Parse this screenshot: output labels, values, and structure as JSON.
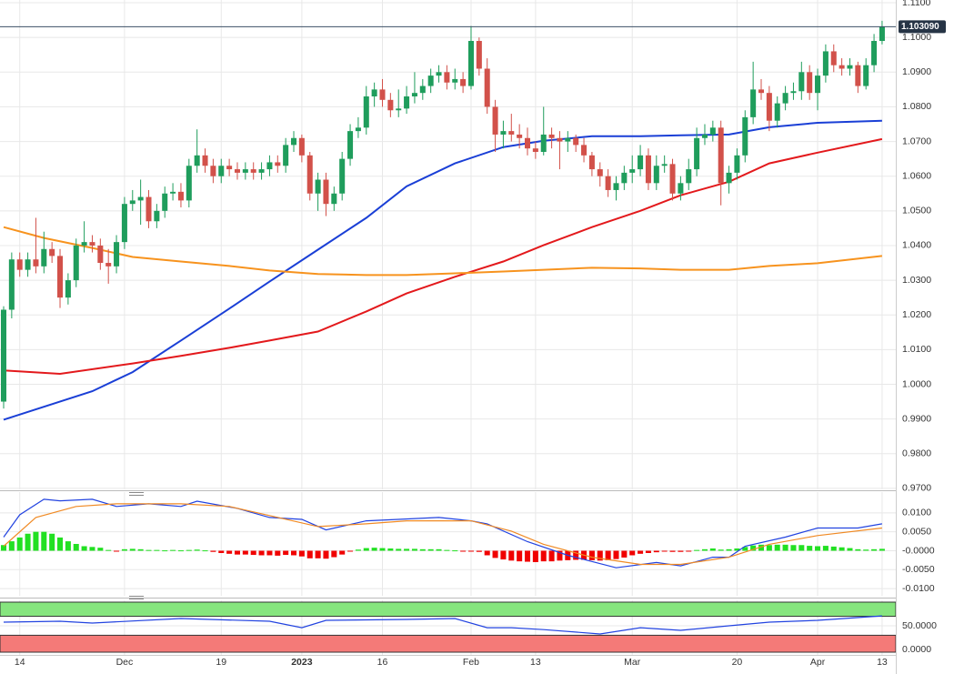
{
  "chart_data": [
    {
      "type": "candlestick",
      "xlim": [
        -0.45,
        110.7
      ],
      "ylim": [
        0.9697,
        1.1108
      ],
      "grid": true,
      "up_color": "#1f9d5c",
      "down_color": "#d2514a",
      "yticks": [
        {
          "value": 1.11,
          "label": "1.1100"
        },
        {
          "value": 1.1,
          "label": "1.1000"
        },
        {
          "value": 1.09,
          "label": "1.0900"
        },
        {
          "value": 1.08,
          "label": "1.0800"
        },
        {
          "value": 1.07,
          "label": "1.0700"
        },
        {
          "value": 1.06,
          "label": "1.0600"
        },
        {
          "value": 1.05,
          "label": "1.0500"
        },
        {
          "value": 1.04,
          "label": "1.0400"
        },
        {
          "value": 1.03,
          "label": "1.0300"
        },
        {
          "value": 1.02,
          "label": "1.0200"
        },
        {
          "value": 1.01,
          "label": "1.0100"
        },
        {
          "value": 1.0,
          "label": "1.0000"
        },
        {
          "value": 0.99,
          "label": "0.9900"
        },
        {
          "value": 0.98,
          "label": "0.9800"
        },
        {
          "value": 0.97,
          "label": "0.9700"
        }
      ],
      "xticks": [
        {
          "value": 2,
          "label": "14"
        },
        {
          "value": 15,
          "label": "Dec"
        },
        {
          "value": 27,
          "label": "19"
        },
        {
          "value": 37,
          "label": "2023"
        },
        {
          "value": 47,
          "label": "16"
        },
        {
          "value": 58,
          "label": "Feb"
        },
        {
          "value": 66,
          "label": "13"
        },
        {
          "value": 78,
          "label": "Mar"
        },
        {
          "value": 91,
          "label": "20"
        },
        {
          "value": 101,
          "label": "Apr"
        },
        {
          "value": 109,
          "label": "13"
        }
      ],
      "last_price": {
        "value": 1.10309,
        "label": "1.103090"
      },
      "open": [
        0.995,
        1.0215,
        1.036,
        1.033,
        1.036,
        1.034,
        1.039,
        1.037,
        1.025,
        1.03,
        1.04,
        1.041,
        1.04,
        1.035,
        1.034,
        1.041,
        1.052,
        1.053,
        1.054,
        1.047,
        1.05,
        1.055,
        1.0555,
        1.053,
        1.063,
        1.066,
        1.063,
        1.06,
        1.063,
        1.062,
        1.061,
        1.062,
        1.061,
        1.062,
        1.064,
        1.063,
        1.069,
        1.071,
        1.066,
        1.055,
        1.059,
        1.052,
        1.055,
        1.065,
        1.073,
        1.074,
        1.083,
        1.085,
        1.082,
        1.079,
        1.0795,
        1.083,
        1.084,
        1.086,
        1.089,
        1.09,
        1.087,
        1.088,
        1.086,
        1.099,
        1.091,
        1.08,
        1.072,
        1.073,
        1.072,
        1.071,
        1.068,
        1.067,
        1.072,
        1.071,
        1.07,
        1.071,
        1.069,
        1.066,
        1.062,
        1.06,
        1.056,
        1.058,
        1.061,
        1.062,
        1.066,
        1.058,
        1.063,
        1.0635,
        1.055,
        1.058,
        1.062,
        1.071,
        1.072,
        1.074,
        1.058,
        1.061,
        1.066,
        1.077,
        1.085,
        1.084,
        1.076,
        1.081,
        1.084,
        1.0845,
        1.09,
        1.084,
        1.089,
        1.096,
        1.092,
        1.091,
        1.092,
        1.086,
        1.092,
        1.099
      ],
      "high": [
        1.0225,
        1.038,
        1.038,
        1.038,
        1.048,
        1.044,
        1.041,
        1.039,
        1.032,
        1.042,
        1.047,
        1.043,
        1.042,
        1.039,
        1.043,
        1.054,
        1.056,
        1.059,
        1.056,
        1.052,
        1.057,
        1.058,
        1.058,
        1.065,
        1.0735,
        1.068,
        1.065,
        1.065,
        1.065,
        1.064,
        1.064,
        1.064,
        1.064,
        1.066,
        1.066,
        1.071,
        1.073,
        1.072,
        1.067,
        1.061,
        1.061,
        1.057,
        1.067,
        1.075,
        1.077,
        1.086,
        1.087,
        1.088,
        1.084,
        1.085,
        1.086,
        1.09,
        1.088,
        1.091,
        1.092,
        1.092,
        1.091,
        1.09,
        1.1033,
        1.1,
        1.094,
        1.082,
        1.076,
        1.078,
        1.075,
        1.074,
        1.07,
        1.08,
        1.074,
        1.073,
        1.073,
        1.072,
        1.071,
        1.067,
        1.064,
        1.062,
        1.06,
        1.063,
        1.066,
        1.069,
        1.068,
        1.066,
        1.066,
        1.065,
        1.06,
        1.065,
        1.074,
        1.075,
        1.076,
        1.076,
        1.063,
        1.068,
        1.079,
        1.093,
        1.088,
        1.086,
        1.083,
        1.086,
        1.087,
        1.093,
        1.092,
        1.091,
        1.098,
        1.098,
        1.094,
        1.094,
        1.093,
        1.094,
        1.101,
        1.1048
      ],
      "low": [
        0.993,
        1.019,
        1.031,
        1.031,
        1.032,
        1.032,
        1.035,
        1.022,
        1.023,
        1.028,
        1.038,
        1.038,
        1.033,
        1.029,
        1.032,
        1.039,
        1.05,
        1.046,
        1.045,
        1.045,
        1.048,
        1.053,
        1.051,
        1.051,
        1.061,
        1.061,
        1.058,
        1.058,
        1.06,
        1.059,
        1.059,
        1.059,
        1.059,
        1.06,
        1.061,
        1.061,
        1.067,
        1.064,
        1.053,
        1.05,
        1.0485,
        1.05,
        1.053,
        1.063,
        1.071,
        1.072,
        1.08,
        1.08,
        1.077,
        1.077,
        1.078,
        1.081,
        1.082,
        1.084,
        1.087,
        1.085,
        1.085,
        1.084,
        1.085,
        1.089,
        1.078,
        1.067,
        1.068,
        1.07,
        1.068,
        1.066,
        1.065,
        1.066,
        1.068,
        1.062,
        1.067,
        1.067,
        1.064,
        1.06,
        1.057,
        1.054,
        1.053,
        1.056,
        1.058,
        1.06,
        1.056,
        1.056,
        1.061,
        1.053,
        1.053,
        1.056,
        1.06,
        1.069,
        1.07,
        1.0516,
        1.055,
        1.059,
        1.064,
        1.075,
        1.082,
        1.073,
        1.074,
        1.079,
        1.082,
        1.082,
        1.082,
        1.079,
        1.087,
        1.09,
        1.089,
        1.089,
        1.084,
        1.085,
        1.09,
        1.098
      ],
      "close": [
        1.0215,
        1.036,
        1.033,
        1.036,
        1.034,
        1.039,
        1.037,
        1.025,
        1.03,
        1.04,
        1.041,
        1.04,
        1.035,
        1.034,
        1.041,
        1.052,
        1.053,
        1.054,
        1.047,
        1.05,
        1.055,
        1.0555,
        1.053,
        1.063,
        1.066,
        1.063,
        1.06,
        1.063,
        1.062,
        1.061,
        1.062,
        1.061,
        1.062,
        1.064,
        1.063,
        1.069,
        1.071,
        1.066,
        1.055,
        1.059,
        1.052,
        1.055,
        1.065,
        1.073,
        1.074,
        1.083,
        1.085,
        1.082,
        1.079,
        1.0795,
        1.083,
        1.084,
        1.086,
        1.089,
        1.09,
        1.087,
        1.088,
        1.086,
        1.099,
        1.091,
        1.08,
        1.072,
        1.073,
        1.072,
        1.071,
        1.068,
        1.067,
        1.072,
        1.071,
        1.07,
        1.071,
        1.069,
        1.066,
        1.062,
        1.06,
        1.056,
        1.058,
        1.061,
        1.062,
        1.066,
        1.058,
        1.063,
        1.0635,
        1.055,
        1.058,
        1.062,
        1.071,
        1.072,
        1.074,
        1.058,
        1.061,
        1.066,
        1.077,
        1.085,
        1.084,
        1.076,
        1.081,
        1.084,
        1.0845,
        1.09,
        1.084,
        1.089,
        1.096,
        1.092,
        1.091,
        1.092,
        1.086,
        1.092,
        1.099,
        1.10309
      ],
      "lines": [
        {
          "color": "#1a3fd6",
          "x": [
            0,
            11,
            16,
            22,
            28,
            33,
            39,
            45,
            50,
            56,
            62,
            67,
            73,
            79,
            84,
            90,
            95,
            101,
            109
          ],
          "values": [
            0.9898,
            0.998,
            1.0035,
            1.0126,
            1.0218,
            1.0296,
            1.0388,
            1.048,
            1.0571,
            1.0637,
            1.0684,
            1.0702,
            1.0715,
            1.0715,
            1.0718,
            1.072,
            1.0741,
            1.0754,
            1.076
          ]
        },
        {
          "color": "#e3191c",
          "x": [
            0,
            7,
            16,
            22,
            28,
            33,
            39,
            45,
            50,
            56,
            62,
            67,
            73,
            79,
            84,
            90,
            95,
            101,
            109
          ],
          "values": [
            1.004,
            1.003,
            1.006,
            1.0082,
            1.0105,
            1.0126,
            1.0152,
            1.021,
            1.0262,
            1.031,
            1.0354,
            1.0401,
            1.0453,
            1.05,
            1.0545,
            1.0584,
            1.0637,
            1.0668,
            1.0707
          ]
        },
        {
          "color": "#f7931e",
          "x": [
            0,
            5,
            11,
            16,
            22,
            28,
            33,
            39,
            45,
            50,
            56,
            62,
            67,
            73,
            79,
            84,
            90,
            95,
            101,
            109
          ],
          "values": [
            1.0453,
            1.0422,
            1.0393,
            1.0367,
            1.0354,
            1.0341,
            1.0328,
            1.0318,
            1.0315,
            1.0315,
            1.032,
            1.0325,
            1.033,
            1.0336,
            1.0334,
            1.033,
            1.033,
            1.0341,
            1.0349,
            1.037
          ]
        }
      ]
    },
    {
      "type": "macd",
      "ylim": [
        -0.0119,
        0.0155
      ],
      "grid": true,
      "up_color": "#22e022",
      "down_color": "#f00000",
      "yticks": [
        {
          "value": 0.01,
          "label": "0.0100"
        },
        {
          "value": 0.005,
          "label": "0.0050"
        },
        {
          "value": 0,
          "label": "-0.0000"
        },
        {
          "value": -0.005,
          "label": "-0.0050"
        },
        {
          "value": -0.01,
          "label": "-0.0100"
        }
      ],
      "histogram": [
        0.0015,
        0.0025,
        0.0035,
        0.0045,
        0.005,
        0.005,
        0.0045,
        0.0035,
        0.0025,
        0.0018,
        0.0012,
        0.001,
        0.0008,
        0.0002,
        -0.0002,
        0.0004,
        0.0005,
        0.0004,
        0.0002,
        0.0002,
        0.0001,
        0.0002,
        0.0001,
        0.0002,
        0.0003,
        0.0001,
        -0.0003,
        -0.0006,
        -0.0008,
        -0.001,
        -0.001,
        -0.0011,
        -0.0012,
        -0.0012,
        -0.0013,
        -0.0011,
        -0.0012,
        -0.0015,
        -0.002,
        -0.002,
        -0.0021,
        -0.0017,
        -0.001,
        -0.0002,
        0.0003,
        0.0007,
        0.0008,
        0.0007,
        0.0006,
        0.0005,
        0.0005,
        0.0005,
        0.0004,
        0.0004,
        0.0004,
        0.0002,
        0.0001,
        -0.0001,
        -0.0002,
        -0.0003,
        -0.0012,
        -0.0019,
        -0.0023,
        -0.0026,
        -0.0028,
        -0.0029,
        -0.003,
        -0.0028,
        -0.0028,
        -0.0026,
        -0.0025,
        -0.0024,
        -0.0024,
        -0.0025,
        -0.0026,
        -0.0025,
        -0.0022,
        -0.0018,
        -0.0012,
        -0.0008,
        -0.0006,
        -0.0004,
        -0.0002,
        -0.0003,
        -0.0003,
        -0.0002,
        0.0002,
        0.0004,
        0.0006,
        0.0003,
        0.0004,
        0.0006,
        0.001,
        0.0014,
        0.0016,
        0.0015,
        0.0016,
        0.0016,
        0.0015,
        0.0015,
        0.0013,
        0.0012,
        0.0013,
        0.0011,
        0.0009,
        0.0007,
        0.0004,
        0.0003,
        0.0004,
        0.0005
      ],
      "lines": [
        {
          "color": "#2243e0",
          "x": [
            0,
            2,
            5,
            7,
            11,
            14,
            18,
            22,
            24,
            29,
            33,
            37,
            40,
            45,
            49,
            54,
            58,
            60,
            65,
            70,
            76,
            81,
            84,
            88,
            90,
            92,
            97,
            101,
            106,
            109
          ],
          "values": [
            0.0036,
            0.0095,
            0.0136,
            0.0132,
            0.0136,
            0.0117,
            0.0124,
            0.0117,
            0.0131,
            0.0112,
            0.0088,
            0.0083,
            0.0055,
            0.0079,
            0.0083,
            0.0088,
            0.0079,
            0.0071,
            0.0024,
            -0.0012,
            -0.0045,
            -0.0031,
            -0.004,
            -0.0017,
            -0.0017,
            0.0012,
            0.0036,
            0.006,
            0.006,
            0.0071
          ]
        },
        {
          "color": "#f08a24",
          "x": [
            0,
            4,
            9,
            14,
            22,
            28,
            33,
            39,
            45,
            50,
            58,
            63,
            67,
            73,
            79,
            84,
            90,
            95,
            101,
            109
          ],
          "values": [
            0.0012,
            0.0088,
            0.0117,
            0.0124,
            0.0124,
            0.0117,
            0.0093,
            0.0064,
            0.0071,
            0.0079,
            0.0079,
            0.0052,
            0.0017,
            -0.0017,
            -0.0036,
            -0.0036,
            -0.0017,
            0.0017,
            0.004,
            0.006
          ]
        }
      ]
    },
    {
      "type": "rsi",
      "ylim": [
        -11.5,
        103.8
      ],
      "grid": true,
      "levels": [
        30,
        70
      ],
      "upper_color": "#86e57e",
      "lower_color": "#f47a78",
      "yticks": [
        {
          "value": 50,
          "label": "50.0000"
        },
        {
          "value": 0,
          "label": "0.0000"
        }
      ],
      "lines": [
        {
          "color": "#2243e0",
          "x": [
            0,
            7,
            11,
            22,
            33,
            37,
            40,
            50,
            56,
            60,
            63,
            67,
            74,
            79,
            84,
            90,
            95,
            101,
            109
          ],
          "values": [
            57.7,
            59.6,
            55.8,
            65.4,
            59.6,
            46,
            61.5,
            63.5,
            65.4,
            46,
            46,
            42,
            32.7,
            46,
            40.4,
            50,
            57.7,
            61.5,
            71
          ]
        }
      ]
    }
  ]
}
